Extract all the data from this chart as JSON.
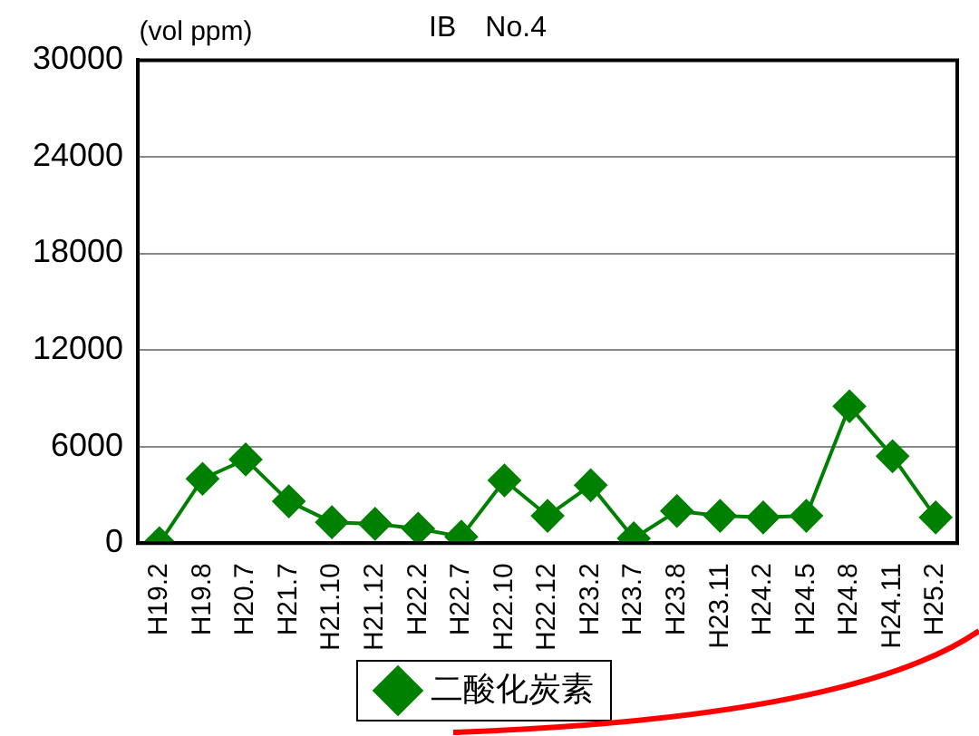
{
  "chart_data": {
    "type": "line",
    "title": "IB　No.4",
    "ylabel": "(vol ppm)",
    "categories": [
      "H19.2",
      "H19.8",
      "H20.7",
      "H21.7",
      "H21.10",
      "H21.12",
      "H22.2",
      "H22.7",
      "H22.10",
      "H22.12",
      "H23.2",
      "H23.7",
      "H23.8",
      "H23.11",
      "H24.2",
      "H24.5",
      "H24.8",
      "H24.11",
      "H25.2"
    ],
    "series": [
      {
        "name": "二酸化炭素",
        "color": "#008000",
        "values": [
          0,
          4000,
          5200,
          2600,
          1300,
          1200,
          900,
          400,
          3900,
          1700,
          3600,
          300,
          2000,
          1700,
          1600,
          1700,
          8500,
          5400,
          1600
        ]
      }
    ],
    "ylim": [
      0,
      30000
    ],
    "yticks": [
      0,
      6000,
      12000,
      18000,
      24000,
      30000
    ],
    "grid": "y",
    "legend": "bottom",
    "marker": "diamond",
    "line_style": "solid"
  }
}
